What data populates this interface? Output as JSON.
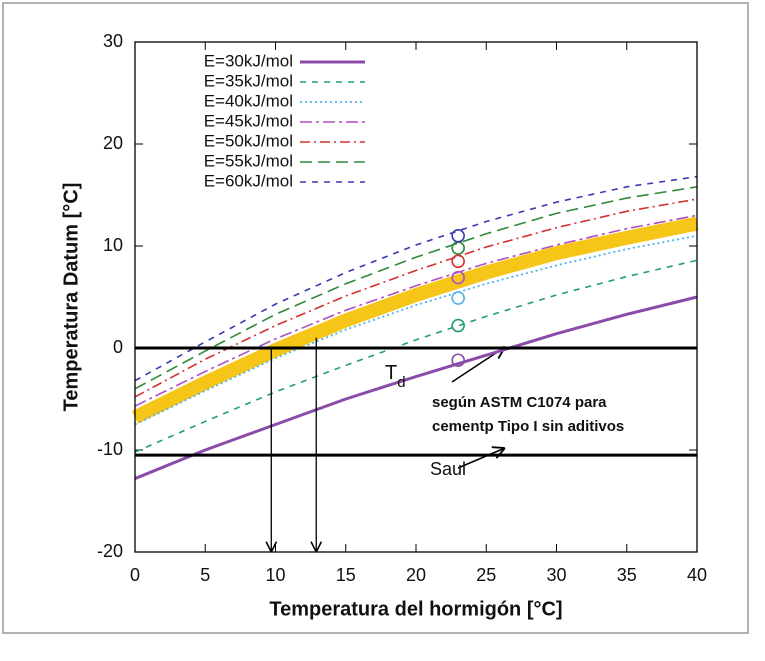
{
  "chart_data": {
    "type": "line",
    "x_label": "Temperatura del hormigón [°C]",
    "y_label": "Temperatura Datum [°C]",
    "x": [
      0,
      5,
      10,
      15,
      20,
      25,
      30,
      35,
      40
    ],
    "xlim": [
      0,
      40
    ],
    "xticks": [
      0,
      5,
      10,
      15,
      20,
      25,
      30,
      35,
      40
    ],
    "ylim": [
      -20,
      30
    ],
    "yticks": [
      -20,
      -10,
      0,
      10,
      20,
      30
    ],
    "series": [
      {
        "name": "E=30kJ/mol",
        "color": "#8a4bab",
        "dash": "",
        "width": 3,
        "values": [
          -12.8,
          -10,
          -7.5,
          -5,
          -2.8,
          -0.7,
          1.4,
          3.3,
          5
        ]
      },
      {
        "name": "E=35kJ/mol",
        "color": "#1f9e78",
        "dash": "6,6",
        "width": 1.6,
        "values": [
          -10.2,
          -7.2,
          -4.3,
          -1.7,
          0.8,
          3.1,
          5.2,
          7,
          8.6
        ]
      },
      {
        "name": "E=40kJ/mol",
        "color": "#4fb3e8",
        "dash": "2,3",
        "width": 1.8,
        "values": [
          -7.5,
          -4.2,
          -1,
          1.8,
          4.2,
          6.3,
          8.1,
          9.7,
          11
        ]
      },
      {
        "name": "E=45kJ/mol",
        "color": "#b04fc0",
        "dash": "12,4,3,4",
        "width": 1.6,
        "values": [
          -5.7,
          -2.3,
          0.9,
          3.7,
          6.1,
          8.3,
          10.1,
          11.7,
          13
        ]
      },
      {
        "name": "E=50kJ/mol",
        "color": "#d43030",
        "dash": "10,4,2,4",
        "width": 1.6,
        "values": [
          -4.8,
          -1.1,
          2.2,
          5.1,
          7.6,
          9.9,
          11.8,
          13.4,
          14.6
        ]
      },
      {
        "name": "E=55kJ/mol",
        "color": "#2e8b3a",
        "dash": "12,6",
        "width": 1.6,
        "values": [
          -4,
          -0.3,
          3.3,
          6.3,
          8.9,
          11.2,
          13.2,
          14.7,
          15.8
        ]
      },
      {
        "name": "E=60kJ/mol",
        "color": "#3a3ab0",
        "dash": "6,6",
        "width": 1.6,
        "values": [
          -3.2,
          0.6,
          4.3,
          7.4,
          10.1,
          12.4,
          14.3,
          15.8,
          16.8
        ]
      }
    ],
    "highlight": {
      "color": "#f5c518",
      "values": [
        -6.8,
        -3.4,
        -0.2,
        2.7,
        5.2,
        7.4,
        9.3,
        10.8,
        12.2
      ]
    },
    "markers": {
      "x": 23,
      "values": [
        -1.2,
        2.2,
        4.9,
        6.9,
        8.5,
        9.8,
        11
      ]
    },
    "hlines": [
      {
        "value": 0,
        "label": "T",
        "subscript": "d"
      },
      {
        "value": -10.5,
        "label": "Saul"
      }
    ],
    "arrows": [
      {
        "x": 9.7,
        "from": 0,
        "to": -20
      },
      {
        "x": 12.9,
        "from": 1,
        "to": -20
      }
    ],
    "annotation": [
      "según ASTM C1074 para",
      "cementp Tipo I sin aditivos"
    ]
  }
}
